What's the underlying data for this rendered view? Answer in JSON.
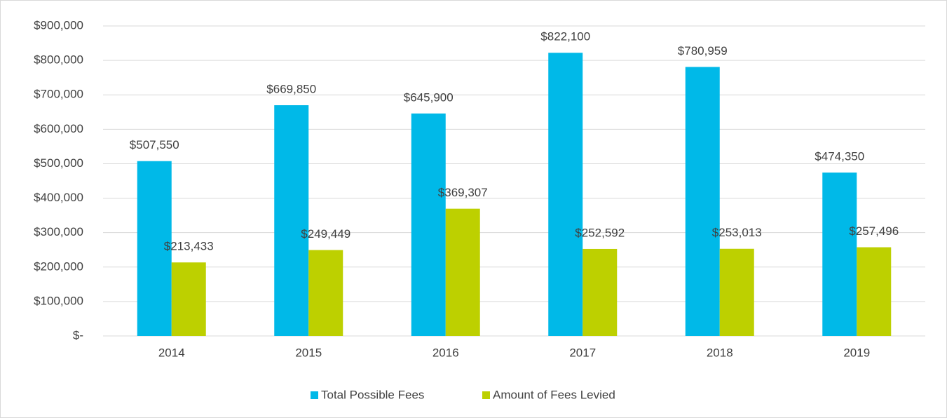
{
  "chart_data": {
    "type": "bar",
    "categories": [
      "2014",
      "2015",
      "2016",
      "2017",
      "2018",
      "2019"
    ],
    "series": [
      {
        "name": "Total Possible Fees",
        "color": "#00b9e8",
        "values": [
          507550,
          669850,
          645900,
          822100,
          780959,
          474350
        ],
        "value_labels": [
          "$507,550",
          "$669,850",
          "$645,900",
          "$822,100",
          "$780,959",
          "$474,350"
        ]
      },
      {
        "name": "Amount of Fees Levied",
        "color": "#bdd000",
        "values": [
          213433,
          249449,
          369307,
          252592,
          253013,
          257496
        ],
        "value_labels": [
          "$213,433",
          "$249,449",
          "$369,307",
          "$252,592",
          "$253,013",
          "$257,496"
        ]
      }
    ],
    "ylim": [
      0,
      900000
    ],
    "yticks": [
      {
        "value": 0,
        "label": "$-"
      },
      {
        "value": 100000,
        "label": "$100,000"
      },
      {
        "value": 200000,
        "label": "$200,000"
      },
      {
        "value": 300000,
        "label": "$300,000"
      },
      {
        "value": 400000,
        "label": "$400,000"
      },
      {
        "value": 500000,
        "label": "$500,000"
      },
      {
        "value": 600000,
        "label": "$600,000"
      },
      {
        "value": 700000,
        "label": "$700,000"
      },
      {
        "value": 800000,
        "label": "$800,000"
      },
      {
        "value": 900000,
        "label": "$900,000"
      }
    ],
    "grid": true,
    "legend": "bottom"
  }
}
